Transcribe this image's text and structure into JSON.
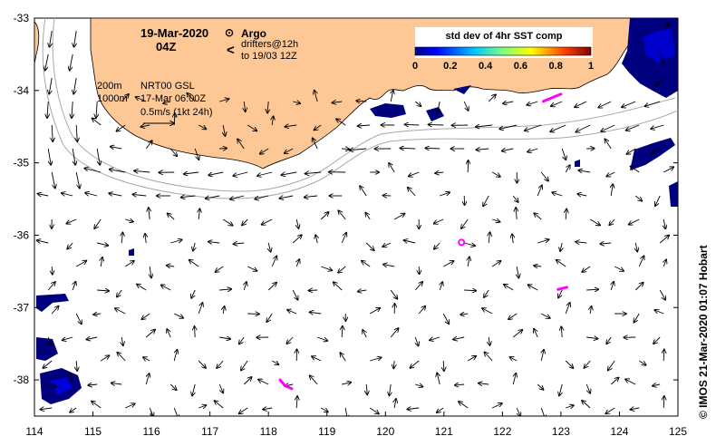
{
  "map": {
    "date_title": "19-Mar-2020",
    "time_title": "04Z",
    "legend_argo": "Argo",
    "legend_drifters_line1": "drifters@12h",
    "legend_drifters_line2": "to 19/03 12Z",
    "legend_argo_symbol": "⊙",
    "legend_drifter_symbol": "<",
    "isobath_200": "200m",
    "isobath_1000": "1000m",
    "product_line1": "NRT00 GSL",
    "product_line2": "17-Mar 06:00Z",
    "scale_label": "0.5m/s (1kt 24h)",
    "credit": "© IMOS 21-Mar-2020 01:07 Hobart"
  },
  "colorbar": {
    "title": "std dev of 4hr SST comp",
    "ticks": [
      "0",
      "0.2",
      "0.4",
      "0.6",
      "0.8",
      "1"
    ],
    "range": [
      0,
      1
    ],
    "colormap": [
      "#00007f",
      "#0000ff",
      "#007fff",
      "#00ffff",
      "#7fff7f",
      "#ffff00",
      "#ff7f00",
      "#ff0000",
      "#7f0000"
    ]
  },
  "axes": {
    "x_ticks": [
      "114",
      "115",
      "116",
      "117",
      "118",
      "119",
      "120",
      "121",
      "122",
      "123",
      "124",
      "125"
    ],
    "y_ticks": [
      "-33",
      "-34",
      "-35",
      "-36",
      "-37",
      "-38"
    ],
    "lon_range": [
      114,
      125
    ],
    "lat_range": [
      -38.5,
      -33
    ]
  },
  "colors": {
    "land": "#fdc896",
    "coast_line": "#000000",
    "isobath": "#a8a8a8",
    "argo": "#ff00ff",
    "drifter": "#ff00ff",
    "sst_high": "#00007f",
    "sst_mid": "#0000ff"
  },
  "argo_floats": [
    {
      "lon": 121.3,
      "lat": -36.1
    }
  ],
  "drifter_tracks": [
    [
      [
        122.7,
        -34.15
      ],
      [
        122.85,
        -34.1
      ],
      [
        123.0,
        -34.05
      ]
    ],
    [
      [
        122.95,
        -36.75
      ],
      [
        123.05,
        -36.73
      ],
      [
        123.1,
        -36.72
      ]
    ],
    [
      [
        118.2,
        -38.0
      ],
      [
        118.28,
        -38.08
      ],
      [
        118.4,
        -38.12
      ]
    ]
  ]
}
